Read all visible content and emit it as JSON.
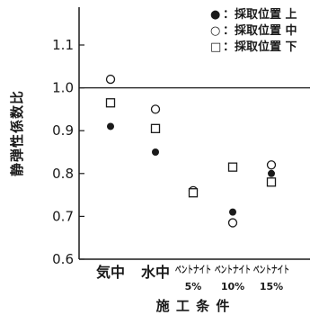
{
  "chart_data": {
    "type": "scatter",
    "xlabel": "施 工 条 件",
    "ylabel": "静弾性係数比",
    "ylim": [
      0.6,
      1.15
    ],
    "yticks": [
      "0.6",
      "0.7",
      "0.8",
      "0.9",
      "1.0",
      "1.1"
    ],
    "ytick_values": [
      0.6,
      0.7,
      0.8,
      0.9,
      1.0,
      1.1
    ],
    "reference_line": 1.0,
    "legend_position": "top-right",
    "categories": [
      {
        "line1": "気中",
        "line2": ""
      },
      {
        "line1": "水中",
        "line2": ""
      },
      {
        "line1": "ベントナイト",
        "line2": "5%"
      },
      {
        "line1": "ベントナイト",
        "line2": "10%"
      },
      {
        "line1": "ベントナイト",
        "line2": "15%"
      }
    ],
    "series": [
      {
        "name": "●：採取位置 上",
        "legend_symbol": "●",
        "legend_text": "：採取位置 上",
        "marker": "filled-circle",
        "values": [
          0.91,
          0.85,
          null,
          0.71,
          0.8
        ]
      },
      {
        "name": "○：採取位置 中",
        "legend_symbol": "○",
        "legend_text": "：採取位置 中",
        "marker": "open-circle",
        "values": [
          1.02,
          0.95,
          0.76,
          0.685,
          0.82
        ]
      },
      {
        "name": "□：採取位置 下",
        "legend_symbol": "□",
        "legend_text": "：採取位置 下",
        "marker": "open-square",
        "values": [
          0.965,
          0.905,
          0.755,
          0.815,
          0.78
        ]
      }
    ],
    "colors": {
      "ink": "#1a1a1a",
      "background": "#ffffff"
    }
  }
}
